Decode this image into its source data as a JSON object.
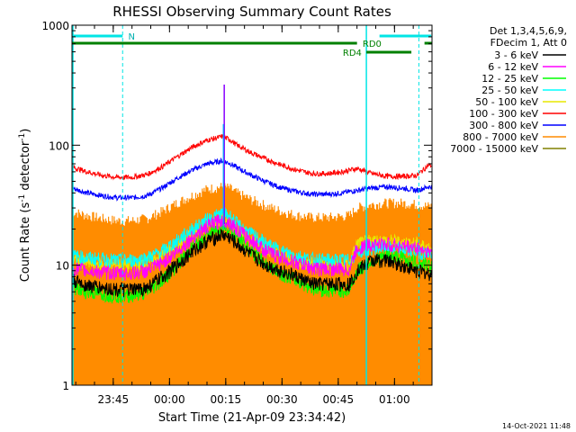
{
  "chart_data": {
    "type": "line",
    "title": "RHESSI Observing Summary Count Rates",
    "xlabel": "Start Time (21-Apr-09 23:34:42)",
    "ylabel": "Count Rate (s⁻¹ detector⁻¹)",
    "ylabel_parts": [
      "Count Rate (s",
      "-1",
      " detector",
      "-1",
      ")"
    ],
    "yscale": "log",
    "ylim": [
      1,
      1000
    ],
    "xlim_minutes": [
      0,
      96
    ],
    "x_ticks": [
      {
        "t": 11,
        "label": "23:45"
      },
      {
        "t": 26,
        "label": "00:00"
      },
      {
        "t": 41,
        "label": "00:15"
      },
      {
        "t": 56,
        "label": "00:30"
      },
      {
        "t": 71,
        "label": "00:45"
      },
      {
        "t": 86,
        "label": "01:00"
      }
    ],
    "y_tick_labels": [
      "1",
      "10",
      "100",
      "1000"
    ],
    "legend_header": [
      "Det 1,3,4,5,6,9,",
      "FDecim 1, Att 0"
    ],
    "timestamp": "14-Oct-2021 11:48",
    "annotations": {
      "n_label": "N",
      "rd0_label": "RD0",
      "rd4_label": "RD4"
    },
    "series": [
      {
        "name": "3 - 6 keV",
        "color": "#000000",
        "x": [
          0,
          4,
          8,
          12,
          16,
          20,
          24,
          28,
          32,
          36,
          40,
          42,
          44,
          48,
          52,
          56,
          60,
          64,
          68,
          72,
          74,
          76,
          80,
          84,
          88,
          92,
          95
        ],
        "y": [
          7.5,
          6.8,
          6.5,
          6.3,
          6.2,
          6.5,
          8,
          10,
          13,
          16,
          18,
          17,
          15,
          12,
          10,
          9,
          8,
          7,
          7,
          7,
          7,
          9,
          11,
          11,
          10,
          9,
          8.5
        ]
      },
      {
        "name": "6 - 12 keV",
        "color": "#ff00ff",
        "x": [
          0,
          4,
          8,
          12,
          16,
          20,
          24,
          28,
          32,
          36,
          40,
          42,
          44,
          48,
          52,
          56,
          60,
          64,
          68,
          72,
          74,
          76,
          80,
          84,
          88,
          92,
          95
        ],
        "y": [
          9.5,
          9,
          8.8,
          8.6,
          8.6,
          9,
          10.5,
          13,
          17,
          21,
          24,
          23,
          20,
          16,
          13,
          11.5,
          10.5,
          9.5,
          9.3,
          9.3,
          9.3,
          14,
          15,
          15,
          14.5,
          14,
          13
        ]
      },
      {
        "name": "12 - 25 keV",
        "color": "#00ff00",
        "x": [
          0,
          4,
          8,
          12,
          16,
          20,
          24,
          28,
          32,
          36,
          40,
          42,
          44,
          48,
          52,
          56,
          60,
          64,
          68,
          72,
          74,
          76,
          80,
          84,
          88,
          92,
          95
        ],
        "y": [
          6.5,
          6,
          5.8,
          5.6,
          5.6,
          6,
          7.5,
          10,
          14,
          18,
          21,
          20,
          17,
          13,
          10,
          8.5,
          7.5,
          6.5,
          6.2,
          6.2,
          6.2,
          9,
          11,
          12,
          11.5,
          10.5,
          10
        ]
      },
      {
        "name": "25 - 50 keV",
        "color": "#00ffff",
        "x": [
          0,
          4,
          8,
          12,
          16,
          20,
          24,
          28,
          32,
          36,
          40,
          42,
          44,
          48,
          52,
          56,
          60,
          64,
          68,
          72,
          74,
          76,
          80,
          84,
          88,
          92,
          95
        ],
        "y": [
          12,
          11.5,
          11.2,
          11,
          11,
          11.5,
          13,
          16,
          20,
          24,
          27,
          26,
          22,
          18,
          15,
          13,
          12,
          11.2,
          11,
          11,
          11,
          13,
          14,
          14,
          13.5,
          13,
          12.5
        ]
      },
      {
        "name": "50 - 100 keV",
        "color": "#e8e800",
        "x": [
          0,
          4,
          8,
          12,
          16,
          20,
          24,
          28,
          32,
          36,
          40,
          42,
          44,
          48,
          52,
          56,
          60,
          64,
          68,
          72,
          74,
          76,
          80,
          84,
          88,
          92,
          95
        ],
        "y": [
          11,
          10.5,
          10.2,
          10,
          10,
          10.5,
          12,
          14.5,
          18,
          22,
          24,
          23,
          20,
          16.5,
          14,
          12,
          11,
          10.3,
          10,
          10,
          10,
          15,
          16,
          16,
          15.5,
          15,
          14
        ]
      },
      {
        "name": "100 - 300 keV",
        "color": "#ff0000",
        "x": [
          0,
          4,
          8,
          12,
          16,
          20,
          24,
          28,
          32,
          36,
          40,
          42,
          44,
          48,
          52,
          56,
          60,
          64,
          68,
          72,
          74,
          76,
          80,
          84,
          88,
          92,
          95
        ],
        "y": [
          66,
          60,
          56,
          54,
          54,
          57,
          66,
          80,
          96,
          110,
          118,
          112,
          100,
          86,
          76,
          68,
          62,
          58,
          58,
          60,
          62,
          64,
          58,
          55,
          55,
          56,
          68
        ]
      },
      {
        "name": "300 - 800 keV",
        "color": "#0000ff",
        "x": [
          0,
          4,
          8,
          12,
          16,
          20,
          24,
          28,
          32,
          36,
          40,
          42,
          44,
          48,
          52,
          56,
          60,
          64,
          68,
          72,
          74,
          76,
          80,
          84,
          88,
          92,
          95
        ],
        "y": [
          44,
          40,
          38,
          36.5,
          36.5,
          38,
          44,
          53,
          62,
          70,
          74,
          71,
          65,
          56,
          49,
          44,
          41,
          39,
          39,
          40,
          41,
          42,
          44,
          45,
          44,
          42,
          45
        ]
      },
      {
        "name": "800 - 7000 keV",
        "color": "#ff8c00",
        "x": [
          0,
          4,
          8,
          12,
          16,
          20,
          24,
          28,
          32,
          36,
          40,
          42,
          44,
          48,
          52,
          56,
          60,
          64,
          68,
          72,
          74,
          76,
          80,
          84,
          88,
          92,
          95
        ],
        "y": [
          28,
          26,
          24.5,
          23.5,
          23.5,
          24.5,
          28,
          33,
          38,
          43,
          45,
          44,
          40,
          35,
          31,
          28,
          26,
          25,
          25,
          25.5,
          26,
          30,
          32,
          33,
          33,
          32,
          31
        ]
      },
      {
        "name": "7000 - 15000 keV",
        "color": "#808000",
        "x": [
          0,
          4,
          8,
          12,
          16,
          20,
          24,
          28,
          29,
          31,
          33,
          35,
          37,
          39,
          41,
          43,
          45,
          48,
          52,
          60,
          64,
          68,
          72,
          76,
          80,
          84,
          86,
          88,
          92,
          95
        ],
        "y": [
          1,
          1,
          1,
          1,
          1,
          1,
          1,
          1,
          1.5,
          1.9,
          1.8,
          1.9,
          1.8,
          1.9,
          1.9,
          1.5,
          1.3,
          1,
          1,
          1,
          1,
          1,
          1,
          1,
          1,
          1,
          1.6,
          1,
          1,
          1
        ]
      }
    ]
  }
}
